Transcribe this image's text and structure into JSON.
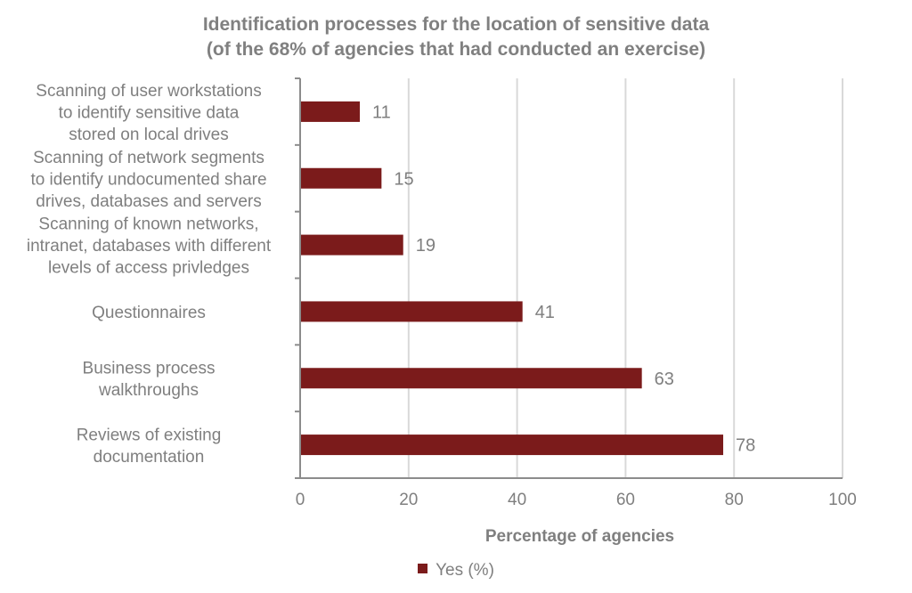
{
  "chart_data": {
    "type": "bar",
    "orientation": "horizontal",
    "title": [
      "Identification processes for the location of sensitive data",
      "(of the 68% of agencies that had conducted an exercise)"
    ],
    "xlabel": "Percentage of agencies",
    "ylabel": "",
    "xlim": [
      0,
      100
    ],
    "xticks": [
      "0",
      "20",
      "40",
      "60",
      "80",
      "100"
    ],
    "grid": "vertical",
    "legend_position": "bottom",
    "categories": [
      [
        "Scanning of user workstations",
        "to identify sensitive data",
        "stored on local drives"
      ],
      [
        "Scanning of network segments",
        "to identify undocumented share",
        "drives, databases and servers"
      ],
      [
        "Scanning of known networks,",
        "intranet, databases with different",
        "levels of access privledges"
      ],
      [
        "Questionnaires"
      ],
      [
        "Business process",
        "walkthroughs"
      ],
      [
        "Reviews of existing",
        "documentation"
      ]
    ],
    "series": [
      {
        "name": "Yes (%)",
        "color": "#7b1b1b",
        "values": [
          11,
          15,
          19,
          41,
          63,
          78
        ]
      }
    ]
  }
}
